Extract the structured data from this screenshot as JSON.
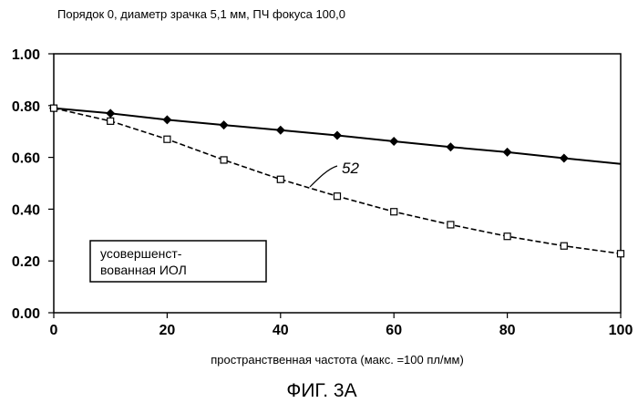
{
  "chart_data": {
    "type": "line",
    "title": "Порядок 0, диаметр зрачка 5,1 мм, ПЧ фокуса 100,0",
    "xlabel": "пространственная частота (макс. =100 пл/мм)",
    "ylabel": "",
    "xlim": [
      0,
      100
    ],
    "ylim": [
      0,
      1
    ],
    "xticks": [
      "0",
      "20",
      "40",
      "60",
      "80",
      "100"
    ],
    "yticks": [
      "0.00",
      "0.20",
      "0.40",
      "0.60",
      "0.80",
      "1.00"
    ],
    "grid": false,
    "series": [
      {
        "name": "",
        "marker": "diamond",
        "line_style": "solid",
        "x": [
          0,
          10,
          20,
          30,
          40,
          50,
          60,
          70,
          80,
          90,
          100
        ],
        "y": [
          0.79,
          0.77,
          0.745,
          0.725,
          0.705,
          0.685,
          0.662,
          0.64,
          0.62,
          0.597,
          0.575
        ],
        "marker_x": [
          0,
          10,
          20,
          30,
          40,
          50,
          60,
          70,
          80,
          90
        ]
      },
      {
        "name": "",
        "marker": "square",
        "line_style": "dashed",
        "x": [
          0,
          10,
          20,
          30,
          40,
          50,
          60,
          70,
          80,
          90,
          100
        ],
        "y": [
          0.79,
          0.74,
          0.67,
          0.59,
          0.515,
          0.45,
          0.39,
          0.34,
          0.295,
          0.258,
          0.228
        ],
        "marker_x": [
          0,
          10,
          20,
          30,
          40,
          50,
          60,
          70,
          80,
          90,
          100
        ]
      }
    ],
    "annotations": [
      {
        "text": "52",
        "points_to_series": 1
      }
    ],
    "legend_box": {
      "line1": "усовершенст-",
      "line2": "вованная ИОЛ"
    }
  },
  "figure_caption": "ФИГ. 3А"
}
